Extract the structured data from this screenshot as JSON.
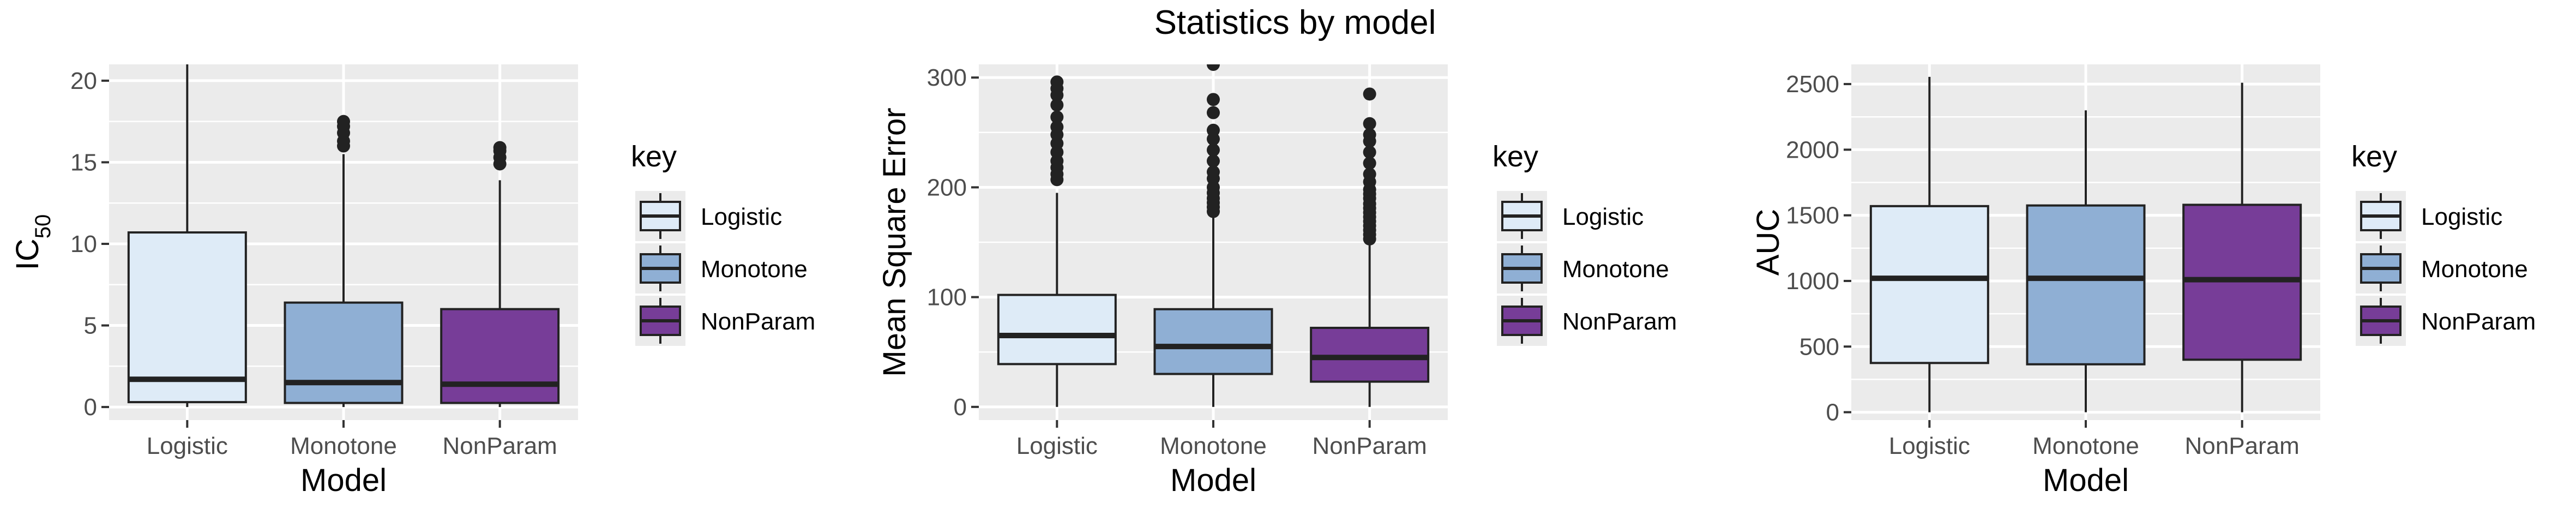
{
  "title": "Statistics by model",
  "colors": {
    "Logistic": "#DEEBF7",
    "Monotone": "#8FAFD4",
    "NonParam": "#773D98",
    "panel_bg": "#EBEBEB",
    "grid": "#FFFFFF",
    "outline": "#222222"
  },
  "legend": {
    "title": "key",
    "items": [
      "Logistic",
      "Monotone",
      "NonParam"
    ]
  },
  "chart_data": [
    {
      "type": "boxplot",
      "xlabel": "Model",
      "ylabel": "IC",
      "ylabel_sub": "50",
      "categories": [
        "Logistic",
        "Monotone",
        "NonParam"
      ],
      "ylim": [
        -0.8,
        21
      ],
      "yticks": [
        0,
        5,
        10,
        15,
        20
      ],
      "grid": true,
      "legend_position": "right",
      "boxes": [
        {
          "name": "Logistic",
          "q1": 0.3,
          "median": 1.7,
          "q3": 10.7,
          "whisker_low": 0,
          "whisker_high": 21,
          "outliers": []
        },
        {
          "name": "Monotone",
          "q1": 0.25,
          "median": 1.5,
          "q3": 6.4,
          "whisker_low": 0,
          "whisker_high": 15.5,
          "outliers": [
            16.0,
            16.3,
            16.8,
            17.2,
            17.5
          ]
        },
        {
          "name": "NonParam",
          "q1": 0.25,
          "median": 1.4,
          "q3": 6.0,
          "whisker_low": 0,
          "whisker_high": 13.9,
          "outliers": [
            14.9,
            15.3,
            15.7,
            15.9
          ]
        }
      ]
    },
    {
      "type": "boxplot",
      "xlabel": "Model",
      "ylabel": "Mean Square Error",
      "categories": [
        "Logistic",
        "Monotone",
        "NonParam"
      ],
      "ylim": [
        -12,
        312
      ],
      "yticks": [
        0,
        100,
        200,
        300
      ],
      "grid": true,
      "legend_position": "right",
      "boxes": [
        {
          "name": "Logistic",
          "q1": 39,
          "median": 65,
          "q3": 102,
          "whisker_low": 0,
          "whisker_high": 195,
          "outliers": [
            207,
            212,
            218,
            224,
            232,
            240,
            248,
            255,
            264,
            275,
            284,
            290,
            296
          ]
        },
        {
          "name": "Monotone",
          "q1": 30,
          "median": 55,
          "q3": 89,
          "whisker_low": 0,
          "whisker_high": 175,
          "outliers": [
            178,
            182,
            186,
            190,
            195,
            200,
            208,
            214,
            224,
            234,
            244,
            252,
            268,
            280,
            312
          ]
        },
        {
          "name": "NonParam",
          "q1": 23,
          "median": 45,
          "q3": 72,
          "whisker_low": 0,
          "whisker_high": 148,
          "outliers": [
            153,
            157,
            161,
            165,
            169,
            173,
            177,
            181,
            185,
            190,
            194,
            198,
            205,
            212,
            222,
            232,
            242,
            248,
            258,
            285
          ]
        }
      ]
    },
    {
      "type": "boxplot",
      "xlabel": "Model",
      "ylabel": "AUC",
      "categories": [
        "Logistic",
        "Monotone",
        "NonParam"
      ],
      "ylim": [
        -60,
        2650
      ],
      "yticks": [
        0,
        500,
        1000,
        1500,
        2000,
        2500
      ],
      "grid": true,
      "legend_position": "right",
      "boxes": [
        {
          "name": "Logistic",
          "q1": 375,
          "median": 1020,
          "q3": 1570,
          "whisker_low": 0,
          "whisker_high": 2555,
          "outliers": []
        },
        {
          "name": "Monotone",
          "q1": 365,
          "median": 1020,
          "q3": 1575,
          "whisker_low": 0,
          "whisker_high": 2300,
          "outliers": []
        },
        {
          "name": "NonParam",
          "q1": 400,
          "median": 1010,
          "q3": 1580,
          "whisker_low": 0,
          "whisker_high": 2510,
          "outliers": []
        }
      ]
    }
  ]
}
